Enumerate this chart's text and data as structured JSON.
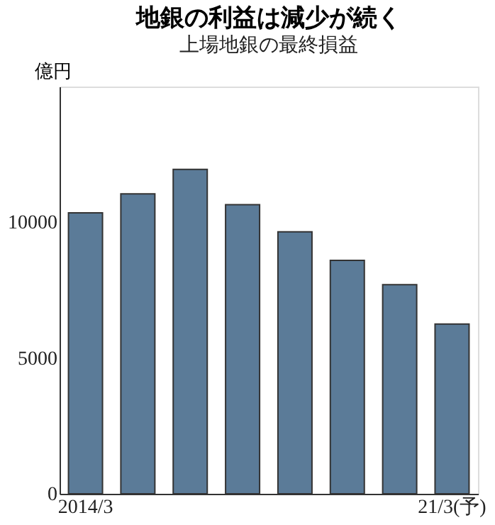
{
  "chart_data": {
    "type": "bar",
    "title": "地銀の利益は減少が続く",
    "subtitle": "上場地銀の最終損益",
    "ylabel": "億円",
    "categories": [
      "2014/3",
      null,
      null,
      null,
      null,
      null,
      null,
      "21/3(予)"
    ],
    "values": [
      10350,
      11050,
      11950,
      10650,
      9650,
      8600,
      7700,
      6250
    ],
    "color": "#5b7b98",
    "ylim": [
      0,
      15000
    ],
    "yticks": [
      0,
      5000,
      10000
    ],
    "grid": false
  }
}
